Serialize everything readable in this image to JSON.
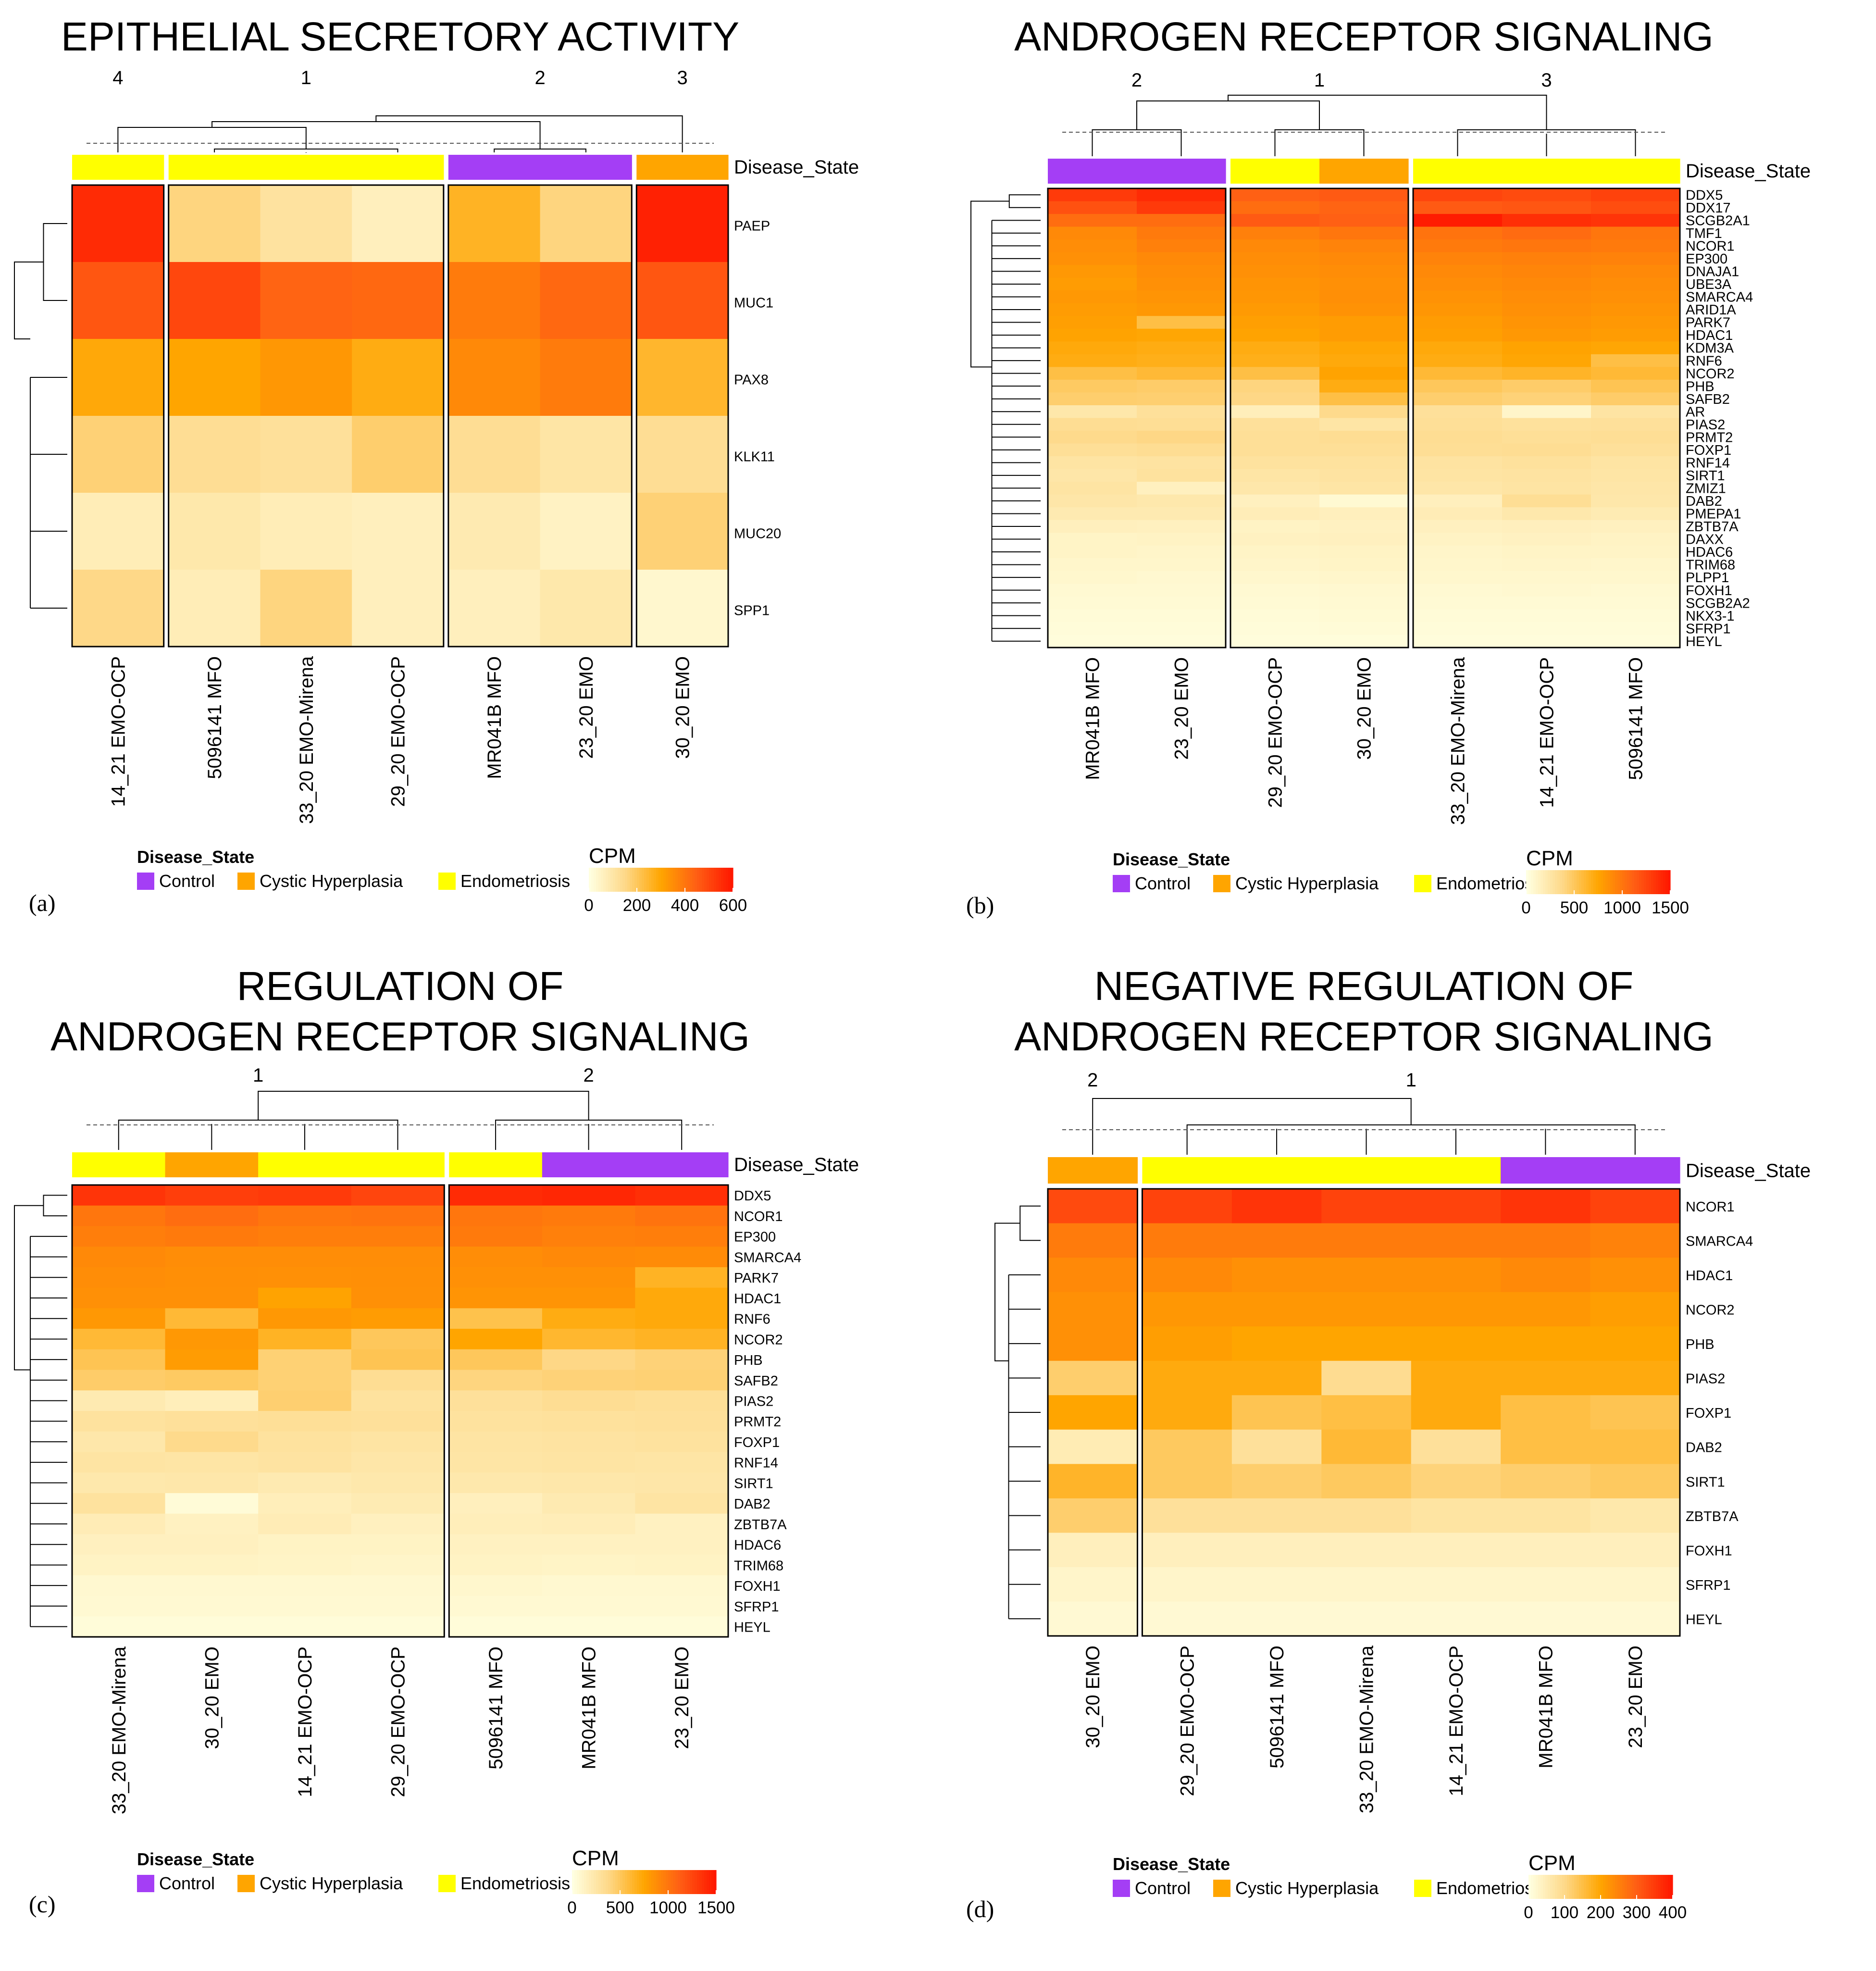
{
  "chart_data": [
    {
      "type": "heatmap",
      "panel_label": "(a)",
      "title": [
        "EPITHELIAL SECRETORY ACTIVITY"
      ],
      "annotation_label": "Disease_State",
      "scale_title": "CPM",
      "scale_max": 600,
      "scale_ticks": [
        "0",
        "200",
        "400",
        "600"
      ],
      "cluster_labels": [
        "4",
        "1",
        "2",
        "3"
      ],
      "cluster_sizes": [
        1,
        3,
        2,
        1
      ],
      "samples": [
        "14_21 EMO-OCP",
        "5096141 MFO",
        "33_20 EMO-Mirena",
        "29_20 EMO-OCP",
        "MR041B MFO",
        "23_20 EMO",
        "30_20 EMO"
      ],
      "sample_states": [
        "Endometriosis",
        "Endometriosis",
        "Endometriosis",
        "Endometriosis",
        "Control",
        "Control",
        "Cystic Hyperplasia"
      ],
      "genes": [
        "PAEP",
        "MUC1",
        "PAX8",
        "KLK11",
        "MUC20",
        "SPP1"
      ],
      "values": [
        [
          560,
          160,
          110,
          60,
          260,
          160,
          580
        ],
        [
          470,
          500,
          440,
          430,
          390,
          430,
          470
        ],
        [
          290,
          300,
          330,
          280,
          360,
          390,
          250
        ],
        [
          170,
          130,
          120,
          180,
          130,
          100,
          130
        ],
        [
          70,
          90,
          70,
          60,
          80,
          50,
          170
        ],
        [
          150,
          70,
          160,
          60,
          60,
          90,
          30
        ]
      ]
    },
    {
      "type": "heatmap",
      "panel_label": "(b)",
      "title": [
        "ANDROGEN RECEPTOR SIGNALING"
      ],
      "annotation_label": "Disease_State",
      "scale_title": "CPM",
      "scale_max": 1500,
      "scale_ticks": [
        "0",
        "500",
        "1000",
        "1500"
      ],
      "cluster_labels": [
        "2",
        "1",
        "3"
      ],
      "cluster_sizes": [
        2,
        2,
        3
      ],
      "samples": [
        "MR041B MFO",
        "23_20 EMO",
        "29_20 EMO-OCP",
        "30_20 EMO",
        "33_20 EMO-Mirena",
        "14_21 EMO-OCP",
        "5096141 MFO"
      ],
      "sample_states": [
        "Control",
        "Control",
        "Endometriosis",
        "Cystic Hyperplasia",
        "Endometriosis",
        "Endometriosis",
        "Endometriosis"
      ],
      "genes": [
        "DDX5",
        "DDX17",
        "SCGB2A1",
        "TMF1",
        "NCOR1",
        "EP300",
        "DNAJA1",
        "UBE3A",
        "SMARCA4",
        "ARID1A",
        "PARK7",
        "HDAC1",
        "KDM3A",
        "RNF6",
        "NCOR2",
        "PHB",
        "SAFB2",
        "AR",
        "PIAS2",
        "PRMT2",
        "FOXP1",
        "RNF14",
        "SIRT1",
        "ZMIZ1",
        "DAB2",
        "PMEPA1",
        "ZBTB7A",
        "DAXX",
        "HDAC6",
        "TRIM68",
        "PLPP1",
        "FOXH1",
        "SCGB2A2",
        "NKX3-1",
        "SFRP1",
        "HEYL"
      ],
      "values": [
        [
          1320,
          1400,
          1120,
          1150,
          1260,
          1230,
          1280
        ],
        [
          1200,
          1320,
          1050,
          1100,
          1150,
          1170,
          1220
        ],
        [
          1050,
          1050,
          1150,
          1120,
          1480,
          1380,
          1350
        ],
        [
          900,
          980,
          950,
          1000,
          1020,
          1060,
          1000
        ],
        [
          880,
          950,
          900,
          930,
          980,
          1000,
          980
        ],
        [
          860,
          900,
          880,
          900,
          930,
          950,
          940
        ],
        [
          820,
          880,
          860,
          880,
          900,
          920,
          900
        ],
        [
          800,
          860,
          840,
          860,
          880,
          900,
          880
        ],
        [
          820,
          840,
          830,
          870,
          850,
          880,
          860
        ],
        [
          800,
          820,
          810,
          850,
          830,
          860,
          840
        ],
        [
          780,
          560,
          780,
          800,
          800,
          840,
          820
        ],
        [
          760,
          740,
          760,
          800,
          780,
          820,
          800
        ],
        [
          720,
          700,
          700,
          740,
          720,
          760,
          740
        ],
        [
          700,
          680,
          680,
          720,
          700,
          740,
          560
        ],
        [
          560,
          600,
          560,
          760,
          600,
          640,
          600
        ],
        [
          480,
          460,
          400,
          700,
          500,
          460,
          520
        ],
        [
          450,
          440,
          380,
          560,
          450,
          420,
          460
        ],
        [
          230,
          300,
          160,
          360,
          300,
          100,
          260
        ],
        [
          330,
          320,
          300,
          250,
          310,
          290,
          300
        ],
        [
          360,
          380,
          310,
          330,
          330,
          310,
          320
        ],
        [
          310,
          330,
          310,
          310,
          320,
          330,
          300
        ],
        [
          260,
          270,
          280,
          280,
          270,
          290,
          260
        ],
        [
          240,
          280,
          250,
          270,
          260,
          270,
          250
        ],
        [
          260,
          140,
          230,
          250,
          240,
          260,
          240
        ],
        [
          240,
          220,
          140,
          60,
          150,
          320,
          230
        ],
        [
          200,
          200,
          170,
          150,
          180,
          220,
          190
        ],
        [
          150,
          140,
          120,
          130,
          140,
          150,
          140
        ],
        [
          110,
          120,
          130,
          140,
          120,
          130,
          120
        ],
        [
          110,
          100,
          110,
          120,
          100,
          110,
          110
        ],
        [
          90,
          90,
          100,
          110,
          90,
          100,
          90
        ],
        [
          80,
          70,
          80,
          90,
          80,
          80,
          80
        ],
        [
          60,
          60,
          60,
          70,
          60,
          70,
          60
        ],
        [
          50,
          50,
          50,
          60,
          50,
          50,
          50
        ],
        [
          40,
          40,
          40,
          50,
          40,
          40,
          40
        ],
        [
          30,
          30,
          30,
          40,
          30,
          30,
          30
        ],
        [
          20,
          20,
          20,
          20,
          20,
          20,
          20
        ]
      ]
    },
    {
      "type": "heatmap",
      "panel_label": "(c)",
      "title": [
        "REGULATION OF",
        "ANDROGEN RECEPTOR SIGNALING"
      ],
      "annotation_label": "Disease_State",
      "scale_title": "CPM",
      "scale_max": 1500,
      "scale_ticks": [
        "0",
        "500",
        "1000",
        "1500"
      ],
      "cluster_labels": [
        "1",
        "2"
      ],
      "cluster_sizes": [
        4,
        3
      ],
      "samples": [
        "33_20 EMO-Mirena",
        "30_20 EMO",
        "14_21 EMO-OCP",
        "29_20 EMO-OCP",
        "5096141 MFO",
        "MR041B MFO",
        "23_20 EMO"
      ],
      "sample_states": [
        "Endometriosis",
        "Cystic Hyperplasia",
        "Endometriosis",
        "Endometriosis",
        "Endometriosis",
        "Control",
        "Control"
      ],
      "genes": [
        "DDX5",
        "NCOR1",
        "EP300",
        "SMARCA4",
        "PARK7",
        "HDAC1",
        "RNF6",
        "NCOR2",
        "PHB",
        "SAFB2",
        "PIAS2",
        "PRMT2",
        "FOXP1",
        "RNF14",
        "SIRT1",
        "DAB2",
        "ZBTB7A",
        "HDAC6",
        "TRIM68",
        "FOXH1",
        "SFRP1",
        "HEYL"
      ],
      "values": [
        [
          1350,
          1300,
          1320,
          1260,
          1400,
          1420,
          1380
        ],
        [
          1000,
          1050,
          1000,
          1020,
          1000,
          980,
          1020
        ],
        [
          960,
          980,
          960,
          960,
          980,
          950,
          960
        ],
        [
          900,
          880,
          880,
          880,
          880,
          900,
          890
        ],
        [
          880,
          870,
          860,
          870,
          860,
          860,
          650
        ],
        [
          860,
          860,
          760,
          860,
          840,
          840,
          720
        ],
        [
          820,
          600,
          820,
          800,
          540,
          700,
          720
        ],
        [
          600,
          820,
          650,
          500,
          750,
          620,
          650
        ],
        [
          520,
          800,
          430,
          520,
          500,
          380,
          420
        ],
        [
          460,
          480,
          430,
          330,
          400,
          420,
          430
        ],
        [
          200,
          160,
          440,
          280,
          300,
          330,
          310
        ],
        [
          280,
          300,
          310,
          300,
          280,
          290,
          300
        ],
        [
          230,
          360,
          280,
          260,
          260,
          270,
          280
        ],
        [
          260,
          250,
          270,
          240,
          250,
          260,
          250
        ],
        [
          220,
          230,
          200,
          220,
          220,
          230,
          240
        ],
        [
          280,
          40,
          160,
          190,
          150,
          200,
          260
        ],
        [
          180,
          130,
          180,
          140,
          160,
          170,
          130
        ],
        [
          140,
          140,
          120,
          120,
          130,
          130,
          130
        ],
        [
          120,
          120,
          110,
          100,
          120,
          110,
          120
        ],
        [
          70,
          70,
          70,
          70,
          80,
          70,
          70
        ],
        [
          60,
          60,
          60,
          60,
          60,
          60,
          60
        ],
        [
          30,
          30,
          30,
          30,
          30,
          30,
          30
        ]
      ]
    },
    {
      "type": "heatmap",
      "panel_label": "(d)",
      "title": [
        "NEGATIVE REGULATION OF",
        "ANDROGEN RECEPTOR SIGNALING"
      ],
      "annotation_label": "Disease_State",
      "scale_title": "CPM",
      "scale_max": 400,
      "scale_ticks": [
        "0",
        "100",
        "200",
        "300",
        "400"
      ],
      "cluster_labels": [
        "2",
        "1"
      ],
      "cluster_sizes": [
        1,
        6
      ],
      "samples": [
        "30_20 EMO",
        "29_20 EMO-OCP",
        "5096141 MFO",
        "33_20 EMO-Mirena",
        "14_21 EMO-OCP",
        "MR041B MFO",
        "23_20 EMO"
      ],
      "sample_states": [
        "Cystic Hyperplasia",
        "Endometriosis",
        "Endometriosis",
        "Endometriosis",
        "Endometriosis",
        "Control",
        "Control"
      ],
      "genes": [
        "NCOR1",
        "SMARCA4",
        "HDAC1",
        "NCOR2",
        "PHB",
        "PIAS2",
        "FOXP1",
        "DAB2",
        "SIRT1",
        "ZBTB7A",
        "FOXH1",
        "SFRP1",
        "HEYL"
      ],
      "values": [
        [
          330,
          340,
          360,
          340,
          340,
          360,
          340
        ],
        [
          260,
          260,
          260,
          260,
          260,
          260,
          250
        ],
        [
          240,
          240,
          230,
          230,
          230,
          240,
          230
        ],
        [
          230,
          220,
          220,
          220,
          220,
          220,
          210
        ],
        [
          230,
          210,
          200,
          200,
          200,
          200,
          200
        ],
        [
          120,
          190,
          190,
          90,
          190,
          190,
          190
        ],
        [
          200,
          190,
          140,
          150,
          190,
          150,
          140
        ],
        [
          50,
          130,
          80,
          160,
          80,
          150,
          150
        ],
        [
          170,
          130,
          120,
          130,
          110,
          120,
          130
        ],
        [
          120,
          80,
          80,
          80,
          70,
          70,
          60
        ],
        [
          40,
          40,
          40,
          40,
          40,
          40,
          40
        ],
        [
          25,
          25,
          25,
          25,
          25,
          25,
          25
        ],
        [
          15,
          15,
          15,
          15,
          15,
          15,
          15
        ]
      ]
    }
  ],
  "legend": {
    "title": "Disease_State",
    "items": [
      {
        "label": "Control",
        "color": "#A43EF5"
      },
      {
        "label": "Cystic Hyperplasia",
        "color": "#FFA500"
      },
      {
        "label": "Endometriosis",
        "color": "#FFFF00"
      }
    ]
  }
}
